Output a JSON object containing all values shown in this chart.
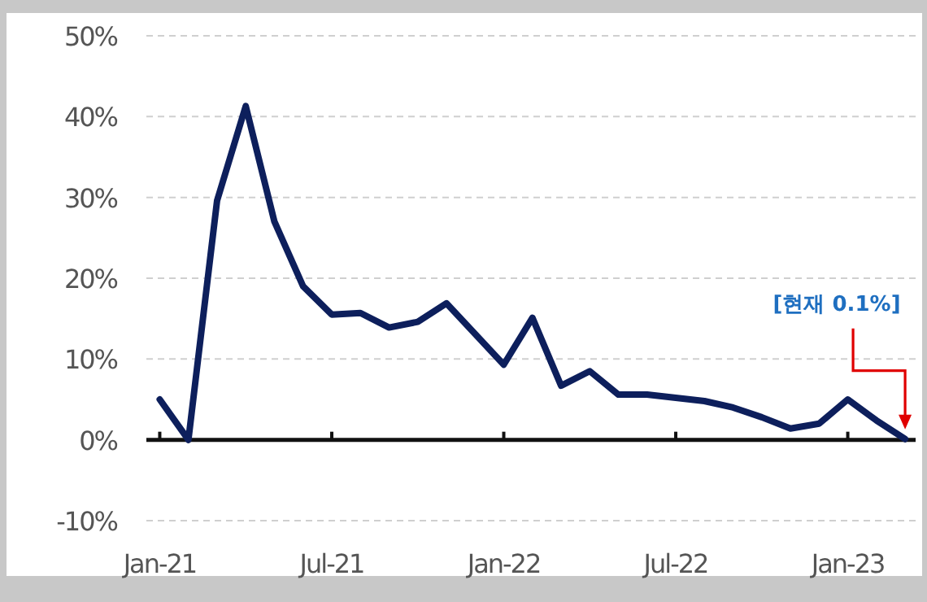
{
  "chart_data": {
    "type": "line",
    "x": [
      "2021-01",
      "2021-02",
      "2021-03",
      "2021-04",
      "2021-05",
      "2021-06",
      "2021-07",
      "2021-08",
      "2021-09",
      "2021-10",
      "2021-11",
      "2021-12",
      "2022-01",
      "2022-02",
      "2022-03",
      "2022-04",
      "2022-05",
      "2022-06",
      "2022-07",
      "2022-08",
      "2022-09",
      "2022-10",
      "2022-11",
      "2022-12",
      "2023-01",
      "2023-02",
      "2023-03"
    ],
    "series": [
      {
        "color": "#0d1f5c",
        "values": [
          5.0,
          0,
          29.6,
          41.3,
          27,
          19,
          15.5,
          15.7,
          13.9,
          14.6,
          16.9,
          13.1,
          9.3,
          15.1,
          6.7,
          8.5,
          5.6,
          5.6,
          5.2,
          4.8,
          4.0,
          2.8,
          1.4,
          2.0,
          5.0,
          2.4,
          0.1
        ]
      }
    ],
    "xlim": [
      "2020-12-17",
      "2023-03-12"
    ],
    "xticks": [
      {
        "value": "2021-01",
        "label": "Jan-21"
      },
      {
        "value": "2021-07",
        "label": "Jul-21"
      },
      {
        "value": "2022-01",
        "label": "Jan-22"
      },
      {
        "value": "2022-07",
        "label": "Jul-22"
      },
      {
        "value": "2023-01",
        "label": "Jan-23"
      }
    ],
    "ylim": [
      -10,
      50
    ],
    "yticks": [
      {
        "value": -10,
        "label": "-10%"
      },
      {
        "value": 0,
        "label": "0%"
      },
      {
        "value": 10,
        "label": "10%"
      },
      {
        "value": 20,
        "label": "20%"
      },
      {
        "value": 30,
        "label": "30%"
      },
      {
        "value": 40,
        "label": "40%"
      },
      {
        "value": 50,
        "label": "50%"
      }
    ],
    "grid": "y",
    "line_style": "solid",
    "marker": "none",
    "annotations": [
      "[현재 0.1%]"
    ]
  }
}
